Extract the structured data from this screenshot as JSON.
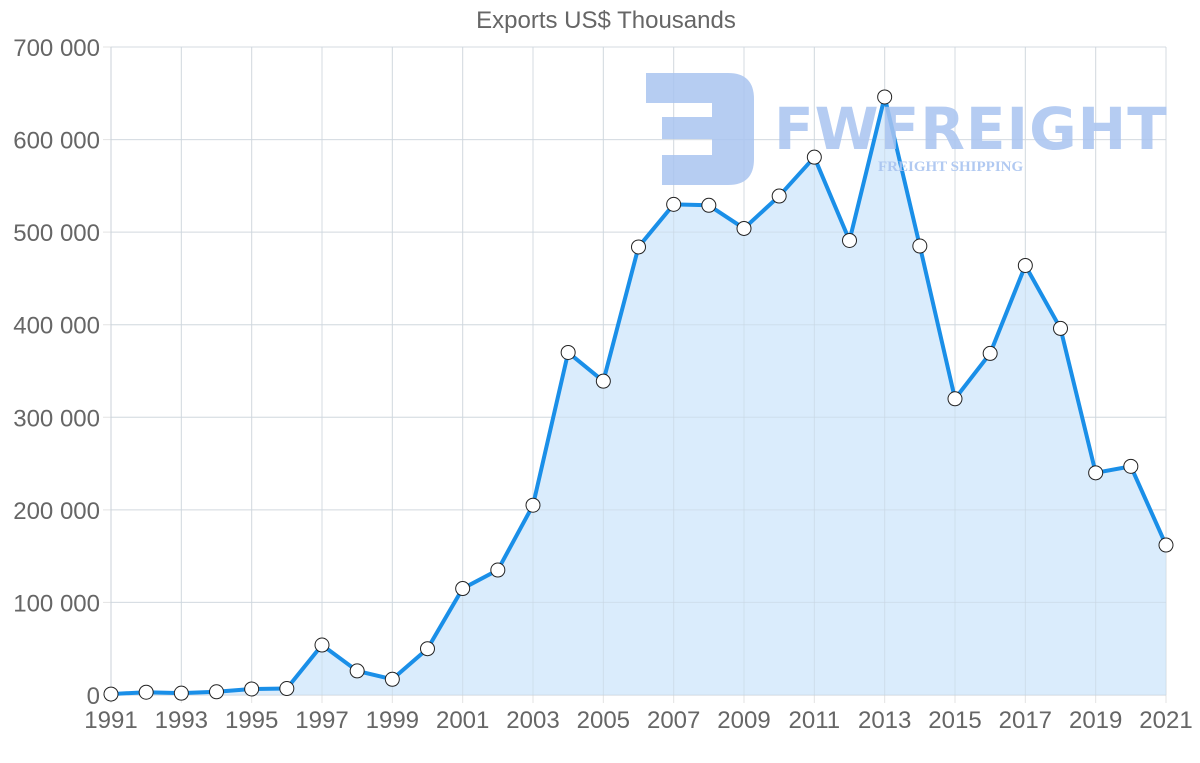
{
  "chart_data": {
    "type": "line",
    "title": "Exports US$ Thousands",
    "xlabel": "",
    "ylabel": "",
    "ylim": [
      0,
      700000
    ],
    "yticks": [
      "0",
      "100 000",
      "200 000",
      "300 000",
      "400 000",
      "500 000",
      "600 000",
      "700 000"
    ],
    "xticks": [
      "1991",
      "1993",
      "1995",
      "1997",
      "1999",
      "2001",
      "2003",
      "2005",
      "2007",
      "2009",
      "2011",
      "2013",
      "2015",
      "2017",
      "2019",
      "2021"
    ],
    "grid": true,
    "legend": null,
    "fill": "area",
    "x": [
      1991,
      1992,
      1993,
      1994,
      1995,
      1996,
      1997,
      1998,
      1999,
      2000,
      2001,
      2002,
      2003,
      2004,
      2005,
      2006,
      2007,
      2008,
      2009,
      2010,
      2011,
      2012,
      2013,
      2014,
      2015,
      2016,
      2017,
      2018,
      2019,
      2020,
      2021
    ],
    "series": [
      {
        "name": "Exports US$ Thousands",
        "color": "#1a8fe8",
        "fill_color": "#d6eafc",
        "values": [
          1000,
          3000,
          2000,
          3500,
          6500,
          7000,
          54000,
          26000,
          17000,
          50000,
          115000,
          135000,
          205000,
          370000,
          339000,
          484000,
          530000,
          529000,
          504000,
          539000,
          581000,
          491000,
          646000,
          485000,
          320000,
          369000,
          464000,
          396000,
          240000,
          247000,
          162000
        ]
      }
    ]
  },
  "watermark": {
    "brand": "FWFREIGHT",
    "tagline": "FREIGHT SHIPPING"
  }
}
